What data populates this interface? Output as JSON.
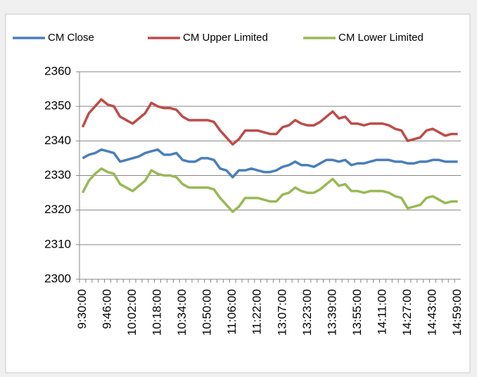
{
  "chart_data": {
    "type": "line",
    "categories": [
      "9:30:00",
      null,
      null,
      null,
      "9:46:00",
      null,
      null,
      null,
      "10:02:00",
      null,
      null,
      null,
      "10:18:00",
      null,
      null,
      null,
      "10:34:00",
      null,
      null,
      null,
      "10:50:00",
      null,
      null,
      null,
      "11:06:00",
      null,
      null,
      null,
      "11:22:00",
      null,
      null,
      null,
      "13:07:00",
      null,
      null,
      null,
      "13:23:00",
      null,
      null,
      null,
      "13:39:00",
      null,
      null,
      null,
      "13:55:00",
      null,
      null,
      null,
      "14:11:00",
      null,
      null,
      null,
      "14:27:00",
      null,
      null,
      null,
      "14:43:00",
      null,
      null,
      null,
      "14:59:00"
    ],
    "series": [
      {
        "name": "CM Close",
        "color": "#4a7ebb",
        "values": [
          2335,
          2336,
          2336.5,
          2337.5,
          2337,
          2336.5,
          2334,
          2334.5,
          2335,
          2335.5,
          2336.5,
          2337,
          2337.5,
          2336,
          2336,
          2336.5,
          2334.5,
          2334,
          2334,
          2335,
          2335,
          2334.5,
          2332,
          2331.5,
          2329.5,
          2331.5,
          2331.5,
          2332,
          2331.5,
          2331,
          2331,
          2331.5,
          2332.5,
          2333,
          2334,
          2333,
          2333,
          2332.5,
          2333.5,
          2334.5,
          2334.5,
          2334,
          2334.5,
          2333,
          2333.5,
          2333.5,
          2334,
          2334.5,
          2334.5,
          2334.5,
          2334,
          2334,
          2333.5,
          2333.5,
          2334,
          2334,
          2334.5,
          2334.5,
          2334,
          2334,
          2334
        ]
      },
      {
        "name": "CM Upper Limited",
        "color": "#be4b48",
        "values": [
          2344,
          2348,
          2350,
          2352,
          2350.5,
          2350,
          2347,
          2346,
          2345,
          2346.5,
          2348,
          2351,
          2350,
          2349.5,
          2349.5,
          2349,
          2347,
          2346,
          2346,
          2346,
          2346,
          2345.5,
          2343,
          2341,
          2339,
          2340.5,
          2343,
          2343,
          2343,
          2342.5,
          2342,
          2342,
          2344,
          2344.5,
          2346,
          2345,
          2344.5,
          2344.5,
          2345.5,
          2347,
          2348.5,
          2346.5,
          2347,
          2345,
          2345,
          2344.5,
          2345,
          2345,
          2345,
          2344.5,
          2343.5,
          2343,
          2340,
          2340.5,
          2341,
          2343,
          2343.5,
          2342.5,
          2341.5,
          2342,
          2342
        ]
      },
      {
        "name": "CM Lower Limited",
        "color": "#98b954",
        "values": [
          2325,
          2328.5,
          2330.5,
          2332,
          2331,
          2330.5,
          2327.5,
          2326.5,
          2325.5,
          2327,
          2328.5,
          2331.5,
          2330.5,
          2330,
          2330,
          2329.5,
          2327.5,
          2326.5,
          2326.5,
          2326.5,
          2326.5,
          2326,
          2323.5,
          2321.5,
          2319.5,
          2321,
          2323.5,
          2323.5,
          2323.5,
          2323,
          2322.5,
          2322.5,
          2324.5,
          2325,
          2326.5,
          2325.5,
          2325,
          2325,
          2326,
          2327.5,
          2329,
          2327,
          2327.5,
          2325.5,
          2325.5,
          2325,
          2325.5,
          2325.5,
          2325.5,
          2325,
          2324,
          2323.5,
          2320.5,
          2321,
          2321.5,
          2323.5,
          2324,
          2323,
          2322,
          2322.5,
          2322.5
        ]
      }
    ],
    "ylim": [
      2300,
      2360
    ],
    "yticks": [
      2300,
      2310,
      2320,
      2330,
      2340,
      2350,
      2360
    ],
    "grid": true,
    "legend": "top"
  }
}
